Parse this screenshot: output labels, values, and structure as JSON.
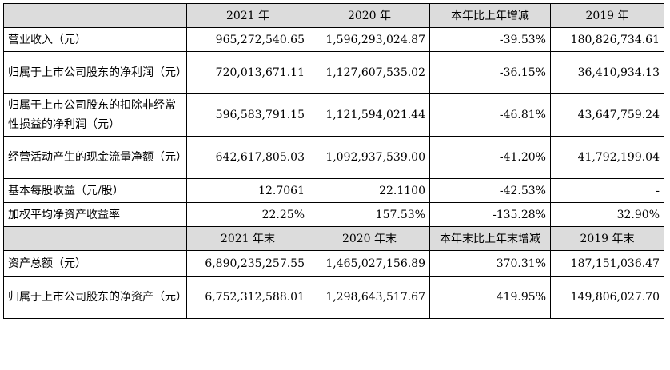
{
  "header_row_1": {
    "label": "",
    "c1": "2021 年",
    "c2": "2020 年",
    "c3": "本年比上年增减",
    "c4": "2019 年"
  },
  "rows_1": [
    {
      "label": "营业收入（元）",
      "c1": "965,272,540.65",
      "c2": "1,596,293,024.87",
      "c3": "-39.53%",
      "c4": "180,826,734.61"
    },
    {
      "label": "归属于上市公司股东的净利润（元）",
      "c1": "720,013,671.11",
      "c2": "1,127,607,535.02",
      "c3": "-36.15%",
      "c4": "36,410,934.13"
    },
    {
      "label": "归属于上市公司股东的扣除非经常性损益的净利润（元）",
      "c1": "596,583,791.15",
      "c2": "1,121,594,021.44",
      "c3": "-46.81%",
      "c4": "43,647,759.24"
    },
    {
      "label": "经营活动产生的现金流量净额（元）",
      "c1": "642,617,805.03",
      "c2": "1,092,937,539.00",
      "c3": "-41.20%",
      "c4": "41,792,199.04"
    },
    {
      "label": "基本每股收益（元/股）",
      "c1": "12.7061",
      "c2": "22.1100",
      "c3": "-42.53%",
      "c4": "-"
    },
    {
      "label": "加权平均净资产收益率",
      "c1": "22.25%",
      "c2": "157.53%",
      "c3": "-135.28%",
      "c4": "32.90%"
    }
  ],
  "header_row_2": {
    "label": "",
    "c1": "2021 年末",
    "c2": "2020 年末",
    "c3": "本年末比上年末增减",
    "c4": "2019 年末"
  },
  "rows_2": [
    {
      "label": "资产总额（元）",
      "c1": "6,890,235,257.55",
      "c2": "1,465,027,156.89",
      "c3": "370.31%",
      "c4": "187,151,036.47"
    },
    {
      "label": "归属于上市公司股东的净资产（元）",
      "c1": "6,752,312,588.01",
      "c2": "1,298,643,517.67",
      "c3": "419.95%",
      "c4": "149,806,027.70"
    }
  ]
}
